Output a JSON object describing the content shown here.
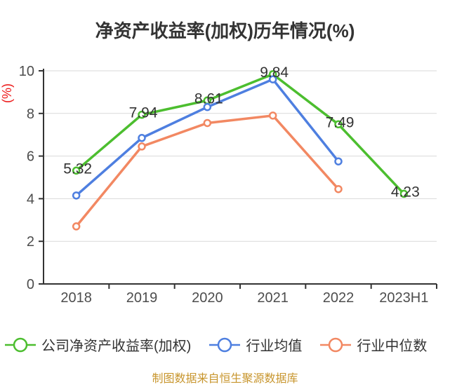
{
  "title": "净资产收益率(加权)历年情况(%)",
  "footer": "制图数据来自恒生聚源数据库",
  "y_axis": {
    "unit_label": "(%)",
    "unit_label_color": "#ED1C1C",
    "ticks": [
      0,
      2,
      4,
      6,
      8,
      10
    ]
  },
  "chart_data": {
    "type": "line",
    "title": "净资产收益率(加权)历年情况(%)",
    "xlabel": "",
    "ylabel": "(%)",
    "ylim": [
      0,
      10
    ],
    "yticks": [
      0,
      2,
      4,
      6,
      8,
      10
    ],
    "grid": "horizontal",
    "legend_position": "bottom",
    "categories": [
      "2018",
      "2019",
      "2020",
      "2021",
      "2022",
      "2023H1"
    ],
    "series": [
      {
        "name": "公司净资产收益率(加权)",
        "color": "#4CBE2F",
        "values": [
          5.32,
          7.94,
          8.61,
          9.84,
          7.49,
          4.23
        ],
        "point_labels": [
          "5.32",
          "7.94",
          "8.61",
          "9.84",
          "7.49",
          "4.23"
        ],
        "show_labels": true
      },
      {
        "name": "行业均值",
        "color": "#4E7FE0",
        "values": [
          4.15,
          6.85,
          8.3,
          9.6,
          5.75,
          null
        ],
        "show_labels": false
      },
      {
        "name": "行业中位数",
        "color": "#F28862",
        "values": [
          2.7,
          6.45,
          7.55,
          7.9,
          4.45,
          null
        ],
        "show_labels": false
      }
    ]
  },
  "colors": {
    "title_text": "#333333",
    "axis_line": "#333333",
    "axis_tick_label": "#4d4d4d",
    "grid_line": "#d9d9d9",
    "data_label": "#333333",
    "footer_gold": "#C8962E",
    "background": "#ffffff"
  }
}
